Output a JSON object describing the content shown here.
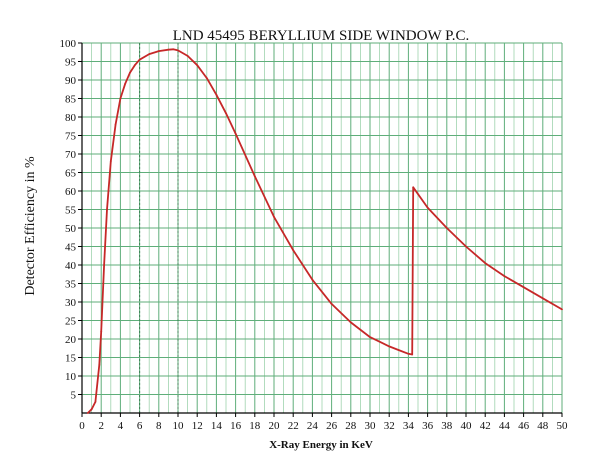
{
  "chart_data": {
    "type": "line",
    "title": "LND 45495 BERYLLIUM SIDE WINDOW P.C.",
    "xlabel": "X-Ray Energy in KeV",
    "ylabel": "Detector Efficiency in %",
    "xlim": [
      0,
      50
    ],
    "ylim": [
      0,
      100
    ],
    "xticks": [
      "0",
      "2",
      "4",
      "6",
      "8",
      "10",
      "12",
      "14",
      "16",
      "18",
      "20",
      "22",
      "24",
      "26",
      "28",
      "30",
      "32",
      "34",
      "36",
      "38",
      "40",
      "42",
      "44",
      "46",
      "48",
      "50"
    ],
    "yticks": [
      "5",
      "10",
      "15",
      "20",
      "25",
      "30",
      "35",
      "40",
      "45",
      "50",
      "55",
      "60",
      "65",
      "70",
      "75",
      "80",
      "85",
      "90",
      "95",
      "100"
    ],
    "grid": true,
    "colors": {
      "curve": "#c62828",
      "grid_major": "#5fae7a",
      "grid_minor": "#9ed3ad",
      "axis": "#000000"
    },
    "series": [
      {
        "x": [
          0.6,
          1.0,
          1.4,
          1.8,
          2.0,
          2.3,
          2.6,
          3.0,
          3.5,
          4.0,
          4.5,
          5.0,
          5.5,
          6.0,
          7.0,
          8.0,
          9.0,
          9.5,
          10.0,
          11.0,
          12.0,
          13.0,
          14.0,
          15.0,
          16.0,
          18.0,
          20.0,
          22.0,
          24.0,
          26.0,
          28.0,
          30.0,
          32.0,
          33.0,
          34.0,
          34.4,
          34.5,
          36.0,
          38.0,
          40.0,
          42.0,
          44.0,
          46.0,
          48.0,
          50.0
        ],
        "y": [
          0,
          1,
          3,
          13,
          22,
          40,
          55,
          68,
          78,
          85,
          89,
          92,
          94,
          95.5,
          97,
          97.8,
          98.2,
          98.3,
          98,
          96.5,
          94,
          90.5,
          86,
          81,
          75.5,
          64,
          53,
          44,
          36,
          29.5,
          24.5,
          20.5,
          18,
          17,
          16,
          15.8,
          61,
          55.5,
          50,
          45,
          40.5,
          37,
          34,
          31,
          28
        ]
      }
    ]
  }
}
